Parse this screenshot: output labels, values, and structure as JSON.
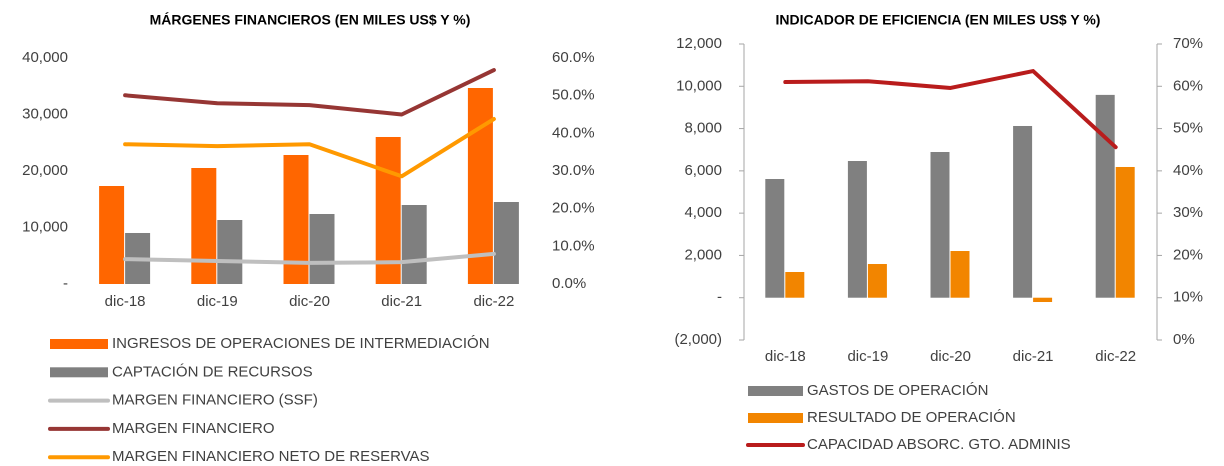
{
  "chart_data": [
    {
      "type": "combo",
      "title": "MÁRGENES FINANCIEROS (EN MILES US$ Y %)",
      "categories": [
        "dic-18",
        "dic-19",
        "dic-20",
        "dic-21",
        "dic-22"
      ],
      "series": [
        {
          "name": "INGRESOS DE OPERACIONES DE INTERMEDIACIÓN",
          "type": "bar",
          "color": "#ff6600",
          "values": [
            17345,
            20531,
            22832,
            26018,
            34690
          ]
        },
        {
          "name": "CAPTACIÓN DE RECURSOS",
          "type": "bar",
          "color": "#7f7f7f",
          "values": [
            9027,
            11327,
            12389,
            13982,
            14513
          ]
        },
        {
          "name": "MARGEN FINANCIERO (SSF)",
          "type": "line",
          "axis": "y2",
          "color": "#bfbfbf",
          "values": [
            6.6,
            6.1,
            5.6,
            5.8,
            8.0
          ]
        },
        {
          "name": "MARGEN FINANCIERO",
          "type": "line",
          "axis": "y2",
          "color": "#963634",
          "values": [
            50.1,
            48.0,
            47.5,
            45.0,
            56.8
          ]
        },
        {
          "name": "MARGEN FINANCIERO NETO DE RESERVAS",
          "type": "line",
          "axis": "y2",
          "color": "#ff9900",
          "values": [
            37.1,
            36.6,
            37.1,
            28.6,
            43.8
          ]
        }
      ],
      "ylim": [
        0,
        40000
      ],
      "yticks": [
        {
          "value": 0,
          "label": "-"
        },
        {
          "value": 10000,
          "label": "10,000"
        },
        {
          "value": 20000,
          "label": "20,000"
        },
        {
          "value": 30000,
          "label": "30,000"
        },
        {
          "value": 40000,
          "label": "40,000"
        }
      ],
      "y2lim": [
        0,
        60
      ],
      "y2ticks": [
        {
          "value": 0,
          "label": "0.0%"
        },
        {
          "value": 10,
          "label": "10.0%"
        },
        {
          "value": 20,
          "label": "20.0%"
        },
        {
          "value": 30,
          "label": "30.0%"
        },
        {
          "value": 40,
          "label": "40.0%"
        },
        {
          "value": 50,
          "label": "50.0%"
        },
        {
          "value": 60,
          "label": "60.0%"
        }
      ],
      "axis_lines": false,
      "legend": "bottom"
    },
    {
      "type": "combo",
      "title": "INDICADOR DE EFICIENCIA (EN MILES US$ Y %)",
      "categories": [
        "dic-18",
        "dic-19",
        "dic-20",
        "dic-21",
        "dic-22"
      ],
      "series": [
        {
          "name": "GASTOS DE OPERACIÓN",
          "type": "bar",
          "color": "#808080",
          "values": [
            5615,
            6466,
            6892,
            8122,
            9593
          ]
        },
        {
          "name": "RESULTADO DE OPERACIÓN",
          "type": "bar",
          "color": "#f28500",
          "values": [
            1216,
            1594,
            2209,
            -203,
            6183
          ]
        },
        {
          "name": "CAPACIDAD ABSORC. GTO. ADMINIS",
          "type": "line",
          "axis": "y2",
          "color": "#b91c1c",
          "values": [
            61.0,
            61.2,
            59.6,
            63.6,
            45.6
          ]
        }
      ],
      "ylim": [
        -2000,
        12000
      ],
      "yticks": [
        {
          "value": -2000,
          "label": "(2,000)"
        },
        {
          "value": 0,
          "label": "-"
        },
        {
          "value": 2000,
          "label": "2,000"
        },
        {
          "value": 4000,
          "label": "4,000"
        },
        {
          "value": 6000,
          "label": "6,000"
        },
        {
          "value": 8000,
          "label": "8,000"
        },
        {
          "value": 10000,
          "label": "10,000"
        },
        {
          "value": 12000,
          "label": "12,000"
        }
      ],
      "y2lim": [
        0,
        70
      ],
      "y2ticks": [
        {
          "value": 0,
          "label": "0%"
        },
        {
          "value": 10,
          "label": "10%"
        },
        {
          "value": 20,
          "label": "20%"
        },
        {
          "value": 30,
          "label": "30%"
        },
        {
          "value": 40,
          "label": "40%"
        },
        {
          "value": 50,
          "label": "50%"
        },
        {
          "value": 60,
          "label": "60%"
        },
        {
          "value": 70,
          "label": "70%"
        }
      ],
      "axis_lines": true,
      "legend": "bottom"
    }
  ]
}
